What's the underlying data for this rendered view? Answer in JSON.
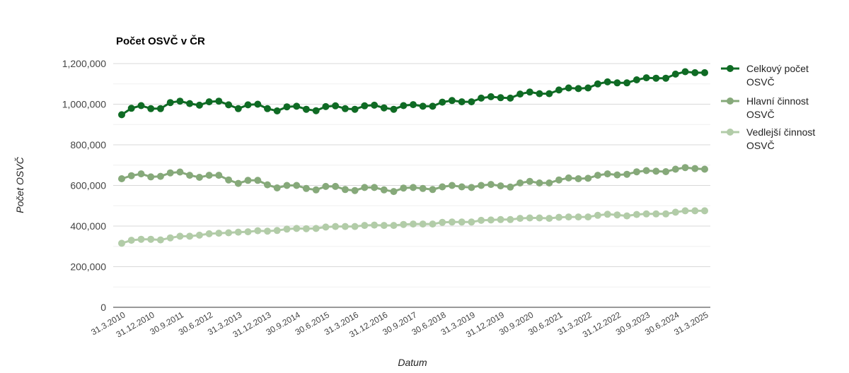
{
  "chart_data": {
    "type": "line",
    "title": "Počet OSVČ v ČR",
    "xlabel": "Datum",
    "ylabel": "Počet OSVČ",
    "ylim": [
      0,
      1200000
    ],
    "yticks": [
      "0",
      "200,000",
      "400,000",
      "600,000",
      "800,000",
      "1,000,000",
      "1,200,000"
    ],
    "grid": true,
    "legend_position": "right",
    "x_tick_labels": [
      "31.3.2010",
      "31.12.2010",
      "30.9.2011",
      "30.6.2012",
      "31.3.2013",
      "31.12.2013",
      "30.9.2014",
      "30.6.2015",
      "31.3.2016",
      "31.12.2016",
      "30.9.2017",
      "30.6.2018",
      "31.3.2019",
      "31.12.2019",
      "30.9.2020",
      "30.6.2021",
      "31.3.2022",
      "31.12.2022",
      "30.9.2023",
      "30.6.2024",
      "31.3.2025"
    ],
    "x_first_quarter": "31.3.2010",
    "x_last_quarter": "31.3.2025",
    "series": [
      {
        "name": "Celkový počet OSVČ",
        "color": "#0f6b24",
        "values": [
          948000,
          980000,
          993000,
          978000,
          978000,
          1008000,
          1015000,
          1003000,
          995000,
          1012000,
          1015000,
          997000,
          978000,
          997000,
          1000000,
          978000,
          967000,
          987000,
          990000,
          975000,
          968000,
          988000,
          992000,
          978000,
          975000,
          992000,
          995000,
          982000,
          975000,
          993000,
          998000,
          990000,
          990000,
          1010000,
          1018000,
          1012000,
          1012000,
          1030000,
          1037000,
          1032000,
          1030000,
          1050000,
          1060000,
          1052000,
          1052000,
          1070000,
          1080000,
          1077000,
          1080000,
          1100000,
          1110000,
          1105000,
          1105000,
          1120000,
          1130000,
          1128000,
          1128000,
          1148000,
          1160000,
          1155000,
          1155000
        ]
      },
      {
        "name": "Hlavní činnost OSVČ",
        "color": "#86a97a",
        "values": [
          633000,
          648000,
          657000,
          642000,
          645000,
          662000,
          666000,
          650000,
          640000,
          650000,
          650000,
          627000,
          610000,
          625000,
          625000,
          603000,
          588000,
          600000,
          600000,
          585000,
          578000,
          595000,
          595000,
          580000,
          575000,
          590000,
          590000,
          578000,
          570000,
          587000,
          590000,
          585000,
          580000,
          593000,
          600000,
          593000,
          590000,
          600000,
          605000,
          598000,
          592000,
          612000,
          620000,
          612000,
          612000,
          627000,
          637000,
          633000,
          635000,
          650000,
          657000,
          652000,
          655000,
          667000,
          673000,
          670000,
          668000,
          680000,
          688000,
          683000,
          680000
        ]
      },
      {
        "name": "Vedlejší činnost OSVČ",
        "color": "#b2cca8",
        "values": [
          315000,
          330000,
          335000,
          335000,
          332000,
          342000,
          350000,
          350000,
          355000,
          362000,
          365000,
          367000,
          370000,
          372000,
          377000,
          375000,
          378000,
          385000,
          388000,
          387000,
          388000,
          395000,
          398000,
          398000,
          398000,
          403000,
          405000,
          403000,
          403000,
          408000,
          410000,
          410000,
          410000,
          418000,
          420000,
          420000,
          420000,
          428000,
          430000,
          432000,
          432000,
          438000,
          440000,
          440000,
          438000,
          443000,
          445000,
          445000,
          445000,
          453000,
          458000,
          455000,
          450000,
          457000,
          460000,
          460000,
          460000,
          468000,
          475000,
          475000,
          475000
        ]
      }
    ]
  }
}
